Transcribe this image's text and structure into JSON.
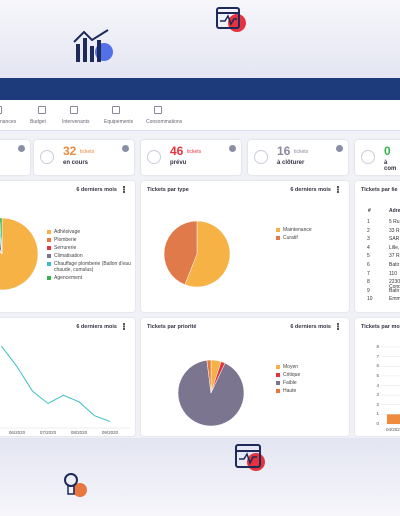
{
  "nav_tabs": [
    "nances",
    "Budget",
    "Intervenants",
    "Equipements",
    "Consommations"
  ],
  "kpis": [
    {
      "count": 32,
      "unit": "tickets",
      "label": "en cours",
      "color": "#f08a3c"
    },
    {
      "count": 46,
      "unit": "tickets",
      "label": "prévu",
      "color": "#e5323f"
    },
    {
      "count": 16,
      "unit": "tickets",
      "label": "à clôturer",
      "color": "#8a8aa0"
    },
    {
      "count": 0,
      "unit": "tic",
      "label": "à com",
      "color": "#35b24a"
    }
  ],
  "category_panel": {
    "period": "6 derniers mois",
    "slices": [
      {
        "name": "Adhésivage",
        "value": 88,
        "color": "#f7b245"
      },
      {
        "name": "Plomberie",
        "value": 3,
        "color": "#e8773f"
      },
      {
        "name": "Serrurerie",
        "value": 2,
        "color": "#e5323f"
      },
      {
        "name": "Climatisation",
        "value": 5,
        "color": "#7b7590"
      },
      {
        "name": "Chauffage plomberie (Ballon d'eau chaude, cumulus)",
        "value": 1,
        "color": "#3bbfc6"
      },
      {
        "name": "Agencement",
        "value": 1,
        "color": "#35b24a"
      }
    ]
  },
  "type_panel": {
    "title": "Tickets par type",
    "period": "6 derniers mois",
    "slices": [
      {
        "name": "Maintenance",
        "value": 56,
        "color": "#f7b245"
      },
      {
        "name": "Curatif",
        "value": 44,
        "color": "#e07a4a"
      }
    ]
  },
  "location_panel": {
    "title": "Tickets par lie",
    "columns": [
      "#",
      "Adre"
    ],
    "rows": [
      [
        1,
        "5 Ru"
      ],
      [
        2,
        "33 R"
      ],
      [
        3,
        "SAR"
      ],
      [
        4,
        "Lille,"
      ],
      [
        5,
        "37 R"
      ],
      [
        6,
        "Batir"
      ],
      [
        7,
        "110"
      ],
      [
        8,
        "2230 Cond"
      ],
      [
        9,
        "Batir"
      ],
      [
        10,
        "Emm"
      ]
    ]
  },
  "trend_panel": {
    "period": "6 derniers mois",
    "categories": [
      null,
      "06/2020",
      null,
      "07/2020",
      null,
      "08/2020",
      null,
      "09/2020"
    ],
    "values": [
      10,
      7.5,
      4.5,
      3,
      4,
      3.2,
      1.5,
      0.8
    ],
    "ylim": [
      0,
      11
    ],
    "color": "#3bbfc6"
  },
  "priority_panel": {
    "title": "Tickets par priorité",
    "period": "6 derniers mois",
    "slices": [
      {
        "name": "Moyen",
        "value": 5,
        "color": "#f7b245"
      },
      {
        "name": "Critique",
        "value": 2,
        "color": "#e5323f"
      },
      {
        "name": "Faible",
        "value": 91,
        "color": "#7b7590"
      },
      {
        "name": "Haute",
        "value": 2,
        "color": "#e8773f"
      }
    ]
  },
  "monthly_panel": {
    "title": "Tickets par mo",
    "categories": [
      "04/202"
    ],
    "values": [
      1
    ],
    "ylim": [
      0,
      8
    ],
    "yticks": [
      0,
      1,
      2,
      3,
      4,
      5,
      6,
      7,
      8
    ],
    "color": "#f08a3c"
  }
}
